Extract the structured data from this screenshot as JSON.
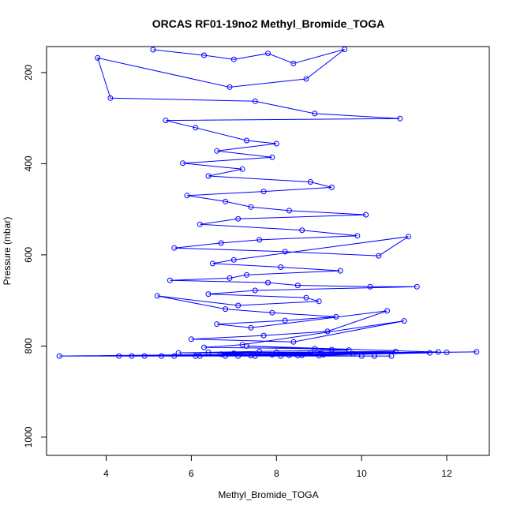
{
  "chart_data": {
    "type": "scatter",
    "title": "ORCAS RF01-19no2 Methyl_Bromide_TOGA",
    "xlabel": "Methyl_Bromide_TOGA",
    "ylabel": "Pressure (mbar)",
    "xlim": [
      2.6,
      13.0
    ],
    "ylim": [
      1040,
      143
    ],
    "y_reversed": true,
    "x_ticks": [
      4,
      6,
      8,
      10,
      12
    ],
    "y_ticks": [
      200,
      400,
      600,
      800,
      1000
    ],
    "grid": false,
    "legend": "none",
    "markers": "open-circle",
    "connected": true,
    "series": [
      {
        "color": "#0000ff",
        "x": [
          5.1,
          6.3,
          7.0,
          7.8,
          8.4,
          9.6,
          8.7,
          6.9,
          3.8,
          4.1,
          7.5,
          8.9,
          10.9,
          5.4,
          6.1,
          7.3,
          8.0,
          6.6,
          7.9,
          5.8,
          7.2,
          6.4,
          8.8,
          9.3,
          7.7,
          5.9,
          6.8,
          7.4,
          8.3,
          10.1,
          7.1,
          6.2,
          8.6,
          9.9,
          7.6,
          6.7,
          5.6,
          8.2,
          10.4,
          11.1,
          7.0,
          6.5,
          8.1,
          9.5,
          7.3,
          6.9,
          5.5,
          7.8,
          8.5,
          10.2,
          11.3,
          7.5,
          6.4,
          8.7,
          9.0,
          7.1,
          5.2,
          6.8,
          7.9,
          9.4,
          8.2,
          6.6,
          7.4,
          10.6,
          9.2,
          7.7,
          6.0,
          8.4,
          11.0,
          7.2,
          6.3,
          8.9,
          9.7,
          7.6,
          5.7,
          8.0,
          10.8,
          7.0,
          6.7,
          9.1,
          8.3,
          7.4,
          6.1,
          9.8,
          8.6,
          7.5,
          2.9,
          12.7,
          4.3,
          11.8,
          5.3,
          10.3,
          6.2,
          9.0,
          7.1,
          8.5,
          11.6,
          4.9,
          6.8,
          10.0,
          7.9,
          5.6,
          8.8,
          9.3,
          7.3,
          12.0,
          6.4,
          8.1,
          10.7,
          4.6
        ],
        "y": [
          150,
          162,
          171,
          158,
          180,
          149,
          214,
          232,
          168,
          256,
          263,
          290,
          301,
          305,
          321,
          349,
          356,
          372,
          386,
          399,
          412,
          427,
          440,
          452,
          461,
          470,
          483,
          495,
          503,
          512,
          521,
          533,
          546,
          558,
          567,
          574,
          585,
          593,
          602,
          560,
          611,
          619,
          627,
          635,
          644,
          651,
          656,
          661,
          667,
          670,
          670,
          678,
          686,
          694,
          702,
          711,
          690,
          719,
          727,
          736,
          744,
          752,
          760,
          723,
          768,
          777,
          785,
          791,
          745,
          797,
          803,
          806,
          809,
          812,
          815,
          814,
          812,
          816,
          818,
          819,
          820,
          821,
          822,
          817,
          820,
          822,
          822,
          813,
          822,
          813,
          822,
          822,
          822,
          821,
          822,
          821,
          815,
          822,
          822,
          822,
          819,
          822,
          815,
          808,
          800,
          814,
          814,
          822,
          822,
          822
        ]
      }
    ]
  }
}
